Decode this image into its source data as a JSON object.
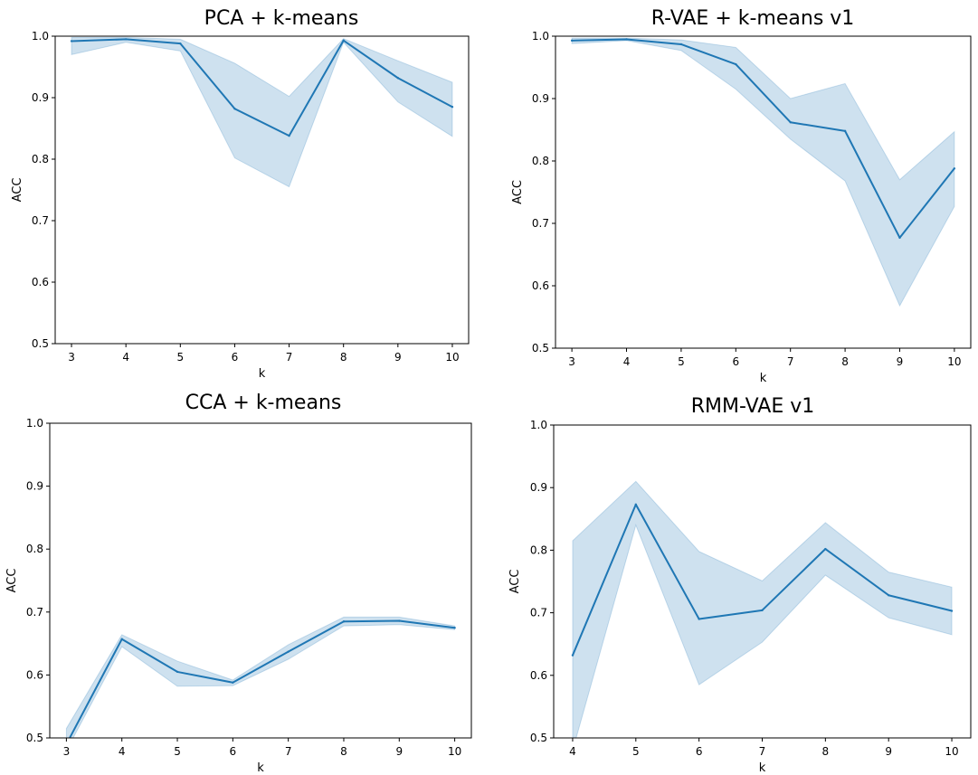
{
  "chart_data": [
    {
      "type": "line",
      "title": "PCA + k-means",
      "xlabel": "k",
      "ylabel": "ACC",
      "xlim": [
        2.7,
        10.3
      ],
      "ylim": [
        0.5,
        1.0
      ],
      "x_ticks": [
        3,
        4,
        5,
        6,
        7,
        8,
        9,
        10
      ],
      "y_ticks": [
        0.5,
        0.6,
        0.7,
        0.8,
        0.9,
        1.0
      ],
      "y_tick_labels": [
        "0.5",
        "0.6",
        "0.7",
        "0.8",
        "0.9",
        "1.0"
      ],
      "grid": false,
      "color": "#1f77b4",
      "series": [
        {
          "x": [
            3,
            4,
            5,
            6,
            7,
            8,
            9,
            10
          ],
          "values": [
            0.992,
            0.995,
            0.988,
            0.882,
            0.838,
            0.993,
            0.932,
            0.885
          ],
          "lower": [
            0.97,
            0.99,
            0.976,
            0.802,
            0.755,
            0.99,
            0.893,
            0.837
          ],
          "upper": [
            0.998,
            0.998,
            0.995,
            0.956,
            0.902,
            0.996,
            0.96,
            0.925
          ]
        }
      ]
    },
    {
      "type": "line",
      "title": "R-VAE + k-means v1",
      "xlabel": "k",
      "ylabel": "ACC",
      "xlim": [
        2.7,
        10.3
      ],
      "ylim": [
        0.5,
        1.0
      ],
      "x_ticks": [
        3,
        4,
        5,
        6,
        7,
        8,
        9,
        10
      ],
      "y_ticks": [
        0.5,
        0.6,
        0.7,
        0.8,
        0.9,
        1.0
      ],
      "y_tick_labels": [
        "0.5",
        "0.6",
        "0.7",
        "0.8",
        "0.9",
        "1.0"
      ],
      "grid": false,
      "color": "#1f77b4",
      "series": [
        {
          "x": [
            3,
            4,
            5,
            6,
            7,
            8,
            9,
            10
          ],
          "values": [
            0.993,
            0.995,
            0.987,
            0.955,
            0.862,
            0.848,
            0.677,
            0.788
          ],
          "lower": [
            0.988,
            0.993,
            0.977,
            0.915,
            0.835,
            0.768,
            0.568,
            0.727
          ],
          "upper": [
            0.997,
            0.997,
            0.994,
            0.982,
            0.9,
            0.924,
            0.77,
            0.847
          ]
        }
      ]
    },
    {
      "type": "line",
      "title": "CCA + k-means",
      "xlabel": "k",
      "ylabel": "ACC",
      "xlim": [
        2.7,
        10.3
      ],
      "ylim": [
        0.5,
        1.0
      ],
      "x_ticks": [
        3,
        4,
        5,
        6,
        7,
        8,
        9,
        10
      ],
      "y_ticks": [
        0.5,
        0.6,
        0.7,
        0.8,
        0.9,
        1.0
      ],
      "y_tick_labels": [
        "0.5",
        "0.6",
        "0.7",
        "0.8",
        "0.9",
        "1.0"
      ],
      "grid": false,
      "color": "#1f77b4",
      "series": [
        {
          "x": [
            3,
            4,
            5,
            6,
            7,
            8,
            9,
            10
          ],
          "values": [
            0.49,
            0.657,
            0.605,
            0.588,
            0.637,
            0.685,
            0.686,
            0.675
          ],
          "lower": [
            0.48,
            0.645,
            0.582,
            0.583,
            0.625,
            0.678,
            0.68,
            0.672
          ],
          "upper": [
            0.515,
            0.664,
            0.622,
            0.592,
            0.648,
            0.692,
            0.692,
            0.678
          ]
        }
      ]
    },
    {
      "type": "line",
      "title": "RMM-VAE v1",
      "xlabel": "k",
      "ylabel": "ACC",
      "xlim": [
        3.7,
        10.3
      ],
      "ylim": [
        0.5,
        1.0
      ],
      "x_ticks": [
        4,
        5,
        6,
        7,
        8,
        9,
        10
      ],
      "y_ticks": [
        0.5,
        0.6,
        0.7,
        0.8,
        0.9,
        1.0
      ],
      "y_tick_labels": [
        "0.5",
        "0.6",
        "0.7",
        "0.8",
        "0.9",
        "1.0"
      ],
      "grid": false,
      "color": "#1f77b4",
      "series": [
        {
          "x": [
            4,
            5,
            6,
            7,
            8,
            9,
            10
          ],
          "values": [
            0.632,
            0.873,
            0.69,
            0.704,
            0.802,
            0.728,
            0.703
          ],
          "lower": [
            0.48,
            0.84,
            0.585,
            0.653,
            0.76,
            0.692,
            0.665
          ],
          "upper": [
            0.815,
            0.91,
            0.798,
            0.751,
            0.844,
            0.765,
            0.741
          ]
        }
      ]
    }
  ]
}
